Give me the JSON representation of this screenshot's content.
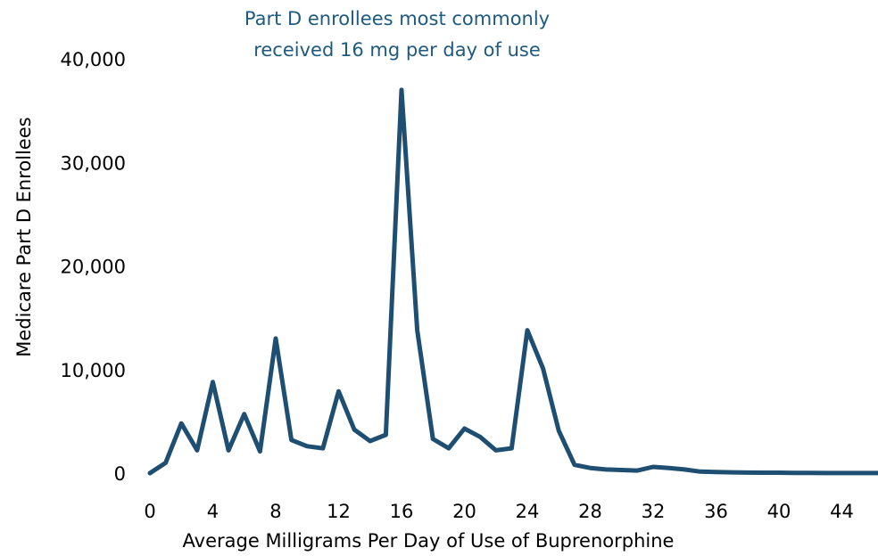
{
  "chart_data": {
    "type": "line",
    "title": "",
    "xlabel": "Average Milligrams Per Day of Use of Buprenorphine",
    "ylabel": "Medicare Part D Enrollees",
    "annotation": [
      "Part D enrollees most commonly",
      "received 16 mg per day of use"
    ],
    "x_ticks": [
      "0",
      "4",
      "8",
      "12",
      "16",
      "20",
      "24",
      "28",
      "32",
      "36",
      "40",
      "44"
    ],
    "y_ticks": [
      "0",
      "10,000",
      "20,000",
      "30,000",
      "40,000"
    ],
    "xlim": [
      0,
      46.3
    ],
    "ylim": [
      0,
      40000
    ],
    "grid": false,
    "line_color": "#1e4f72",
    "annotation_color": "#1e5a80",
    "series": [
      {
        "x": [
          0,
          1,
          2,
          3,
          4,
          5,
          6,
          7,
          8,
          9,
          10,
          11,
          12,
          13,
          14,
          15,
          16,
          17,
          18,
          19,
          20,
          21,
          22,
          23,
          24,
          25,
          26,
          27,
          28,
          29,
          30,
          31,
          32,
          33,
          34,
          35,
          36,
          37,
          38,
          39,
          40,
          41,
          42,
          43,
          44,
          45,
          46.3
        ],
        "y": [
          0,
          1000,
          4800,
          2200,
          8800,
          2200,
          5700,
          2100,
          13000,
          3200,
          2600,
          2400,
          7900,
          4200,
          3100,
          3700,
          37000,
          13800,
          3300,
          2400,
          4300,
          3500,
          2200,
          2400,
          13800,
          10100,
          4100,
          800,
          500,
          350,
          300,
          250,
          600,
          500,
          350,
          150,
          100,
          80,
          50,
          40,
          40,
          30,
          20,
          10,
          10,
          10,
          10
        ]
      }
    ]
  }
}
